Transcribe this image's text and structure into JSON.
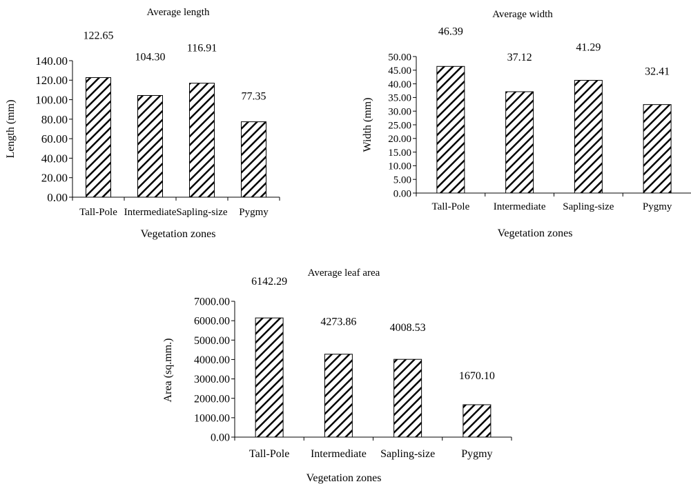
{
  "chart_data": [
    {
      "id": "length",
      "type": "bar",
      "title": "Average length",
      "xlabel": "Vegetation zones",
      "ylabel": "Length (mm)",
      "categories": [
        "Tall-Pole",
        "Intermediate",
        "Sapling-size",
        "Pygmy"
      ],
      "values": [
        122.65,
        104.3,
        116.91,
        77.35
      ],
      "value_labels": [
        "122.65",
        "104.30",
        "116.91",
        "77.35"
      ],
      "ylim": [
        0,
        140
      ],
      "yticks": [
        "0.00",
        "20.00",
        "40.00",
        "60.00",
        "80.00",
        "100.00",
        "120.00",
        "140.00"
      ],
      "grid": false,
      "bar_pattern": "diagonal-hatch"
    },
    {
      "id": "width",
      "type": "bar",
      "title": "Average width",
      "xlabel": "Vegetation zones",
      "ylabel": "Width (mm)",
      "categories": [
        "Tall-Pole",
        "Intermediate",
        "Sapling-size",
        "Pygmy"
      ],
      "values": [
        46.39,
        37.12,
        41.29,
        32.41
      ],
      "value_labels": [
        "46.39",
        "37.12",
        "41.29",
        "32.41"
      ],
      "ylim": [
        0,
        50
      ],
      "yticks": [
        "0.00",
        "5.00",
        "10.00",
        "15.00",
        "20.00",
        "25.00",
        "30.00",
        "35.00",
        "40.00",
        "45.00",
        "50.00"
      ],
      "grid": false,
      "bar_pattern": "diagonal-hatch"
    },
    {
      "id": "area",
      "type": "bar",
      "title": "Average leaf area",
      "xlabel": "Vegetation zones",
      "ylabel": "Area (sq.mm.)",
      "categories": [
        "Tall-Pole",
        "Intermediate",
        "Sapling-size",
        "Pygmy"
      ],
      "values": [
        6142.29,
        4273.86,
        4008.53,
        1670.1
      ],
      "value_labels": [
        "6142.29",
        "4273.86",
        "4008.53",
        "1670.10"
      ],
      "ylim": [
        0,
        7000
      ],
      "yticks": [
        "0.00",
        "1000.00",
        "2000.00",
        "3000.00",
        "4000.00",
        "5000.00",
        "6000.00",
        "7000.00"
      ],
      "grid": false,
      "bar_pattern": "diagonal-hatch"
    }
  ]
}
